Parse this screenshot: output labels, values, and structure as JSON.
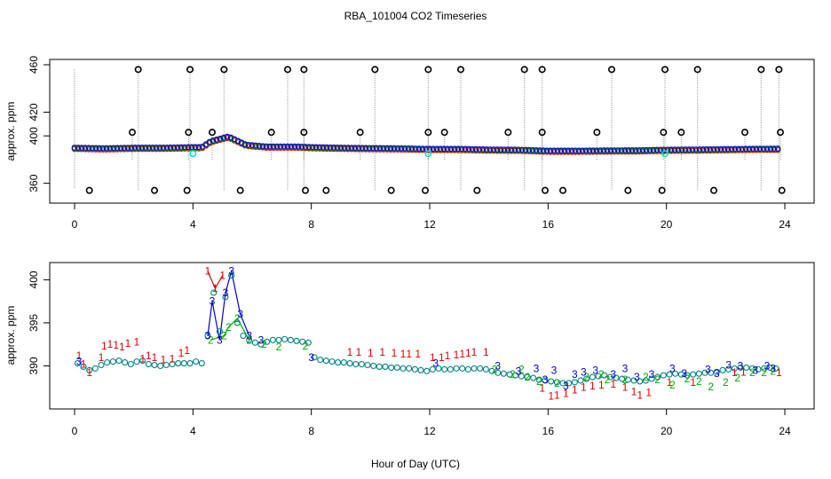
{
  "chart_data": [
    {
      "type": "scatter",
      "title": "RBA_101004  CO2 Timeseries",
      "xlabel": "",
      "ylabel": "approx. ppm",
      "xlim": [
        0,
        24
      ],
      "ylim": [
        350,
        460
      ],
      "xticks": [
        0,
        4,
        8,
        12,
        16,
        20,
        24
      ],
      "yticks": [
        360,
        400,
        420,
        460
      ],
      "colors": {
        "series1": "#dd0000",
        "series2": "#00aa00",
        "series3": "#0000cc",
        "flagged": "#000000",
        "cyan": "#00dddd",
        "lines": "#9a9a9a"
      },
      "baseline": [
        [
          0,
          389.5
        ],
        [
          1,
          389
        ],
        [
          2,
          389.5
        ],
        [
          3,
          389.5
        ],
        [
          4,
          390
        ],
        [
          4.3,
          390
        ],
        [
          4.6,
          395
        ],
        [
          5.2,
          399
        ],
        [
          5.8,
          392
        ],
        [
          6.5,
          390.5
        ],
        [
          7.5,
          390.5
        ],
        [
          8,
          390
        ],
        [
          9,
          389.5
        ],
        [
          10,
          389.2
        ],
        [
          11,
          389
        ],
        [
          12,
          388.5
        ],
        [
          13,
          388.5
        ],
        [
          14,
          388
        ],
        [
          15,
          387.8
        ],
        [
          16,
          387
        ],
        [
          17,
          387
        ],
        [
          18,
          387.2
        ],
        [
          19,
          387.3
        ],
        [
          20,
          387.8
        ],
        [
          21,
          388
        ],
        [
          22,
          388.3
        ],
        [
          23,
          388.6
        ],
        [
          23.8,
          388.7
        ]
      ],
      "flagged_high": [
        2.15,
        3.9,
        5.05,
        7.2,
        7.75,
        10.15,
        11.95,
        13.05,
        15.2,
        15.8,
        18.15,
        19.95,
        21.05,
        23.2,
        23.8
      ],
      "flagged_mid": [
        1.95,
        3.85,
        4.65,
        6.65,
        7.75,
        9.65,
        11.95,
        12.5,
        14.65,
        15.8,
        17.65,
        19.9,
        20.5,
        22.65,
        23.85
      ],
      "flagged_low": [
        0.5,
        2.7,
        3.8,
        5.6,
        7.8,
        8.5,
        10.7,
        11.85,
        13.6,
        15.9,
        16.5,
        18.7,
        19.85,
        21.6,
        23.9
      ],
      "cyan_points": [
        4,
        11.95,
        19.95
      ]
    },
    {
      "type": "scatter",
      "title": "",
      "xlabel": "Hour of Day (UTC)",
      "ylabel": "approx. ppm",
      "xlim": [
        0,
        24
      ],
      "ylim": [
        385,
        402
      ],
      "xticks": [
        0,
        4,
        8,
        12,
        16,
        20,
        24
      ],
      "yticks": [
        390,
        395,
        400
      ],
      "colors": {
        "series1": "#dd0000",
        "series2": "#00aa00",
        "series3": "#0000cc",
        "circles": "#008080"
      },
      "series": [
        {
          "label_char": "1",
          "values": [
            [
              0.15,
              391.2
            ],
            [
              0.3,
              390.2
            ],
            [
              0.5,
              389.2
            ],
            [
              0.9,
              391
            ],
            [
              1,
              392.3
            ],
            [
              1.2,
              392.5
            ],
            [
              1.4,
              392.4
            ],
            [
              1.6,
              392.2
            ],
            [
              1.8,
              392.6
            ],
            [
              2.1,
              392.8
            ],
            [
              2.3,
              390.8
            ],
            [
              2.5,
              391.2
            ],
            [
              2.7,
              391
            ],
            [
              3,
              390.7
            ],
            [
              3.3,
              390.8
            ],
            [
              3.6,
              391.5
            ],
            [
              3.8,
              391.8
            ],
            [
              4.5,
              401
            ],
            [
              4.75,
              399
            ],
            [
              5,
              400.5
            ],
            [
              9.3,
              391.6
            ],
            [
              9.6,
              391.6
            ],
            [
              10,
              391.5
            ],
            [
              10.4,
              391.6
            ],
            [
              10.8,
              391.5
            ],
            [
              11.1,
              391.4
            ],
            [
              11.3,
              391.4
            ],
            [
              11.6,
              391.4
            ],
            [
              12.1,
              391
            ],
            [
              12.4,
              391
            ],
            [
              12.6,
              391.2
            ],
            [
              12.9,
              391.3
            ],
            [
              13.1,
              391.4
            ],
            [
              13.3,
              391.5
            ],
            [
              13.5,
              391.6
            ],
            [
              13.9,
              391.6
            ],
            [
              15.8,
              387.4
            ],
            [
              16.1,
              386.5
            ],
            [
              16.3,
              386.6
            ],
            [
              16.6,
              386.8
            ],
            [
              16.9,
              387.2
            ],
            [
              17.2,
              387.5
            ],
            [
              17.5,
              387.7
            ],
            [
              17.8,
              387.8
            ],
            [
              18.2,
              387.9
            ],
            [
              18.6,
              387.5
            ],
            [
              18.9,
              387
            ],
            [
              19.1,
              386.6
            ],
            [
              19.4,
              386.9
            ],
            [
              20.1,
              388.1
            ],
            [
              20.9,
              388.1
            ],
            [
              22.3,
              389.2
            ],
            [
              22.6,
              389.3
            ],
            [
              23.8,
              389.2
            ]
          ]
        },
        {
          "label_char": "2",
          "values": [
            [
              4.6,
              393
            ],
            [
              5.05,
              393.5
            ],
            [
              5.2,
              394.5
            ],
            [
              5.5,
              395.5
            ],
            [
              5.9,
              393
            ],
            [
              6.4,
              392.5
            ],
            [
              6.9,
              392.2
            ],
            [
              7.8,
              392.3
            ],
            [
              14.2,
              389.6
            ],
            [
              14.8,
              389
            ],
            [
              15.1,
              389.6
            ],
            [
              15.3,
              388.7
            ],
            [
              15.7,
              388.2
            ],
            [
              16.3,
              388
            ],
            [
              17.3,
              388.7
            ],
            [
              17.8,
              389
            ],
            [
              18,
              388.4
            ],
            [
              18.6,
              388.4
            ],
            [
              19.3,
              388.7
            ],
            [
              19.7,
              388.4
            ],
            [
              20.2,
              387.8
            ],
            [
              20.7,
              388.5
            ],
            [
              21.1,
              388.2
            ],
            [
              21.5,
              387.6
            ],
            [
              22,
              388.1
            ],
            [
              22.4,
              388.6
            ],
            [
              22.9,
              389.2
            ],
            [
              23.3,
              389.2
            ],
            [
              23.6,
              389.4
            ]
          ]
        },
        {
          "label_char": "3",
          "values": [
            [
              0.15,
              390.5
            ],
            [
              4.5,
              393.5
            ],
            [
              4.65,
              397.5
            ],
            [
              4.9,
              393
            ],
            [
              5.1,
              398.5
            ],
            [
              5.3,
              401
            ],
            [
              5.6,
              396
            ],
            [
              5.9,
              393.5
            ],
            [
              6.3,
              393
            ],
            [
              8,
              391
            ],
            [
              12.2,
              390.3
            ],
            [
              14.3,
              390
            ],
            [
              15,
              389.4
            ],
            [
              15.6,
              389.7
            ],
            [
              15.9,
              388.4
            ],
            [
              16.2,
              389.5
            ],
            [
              16.6,
              387.7
            ],
            [
              16.9,
              389
            ],
            [
              17.2,
              389.3
            ],
            [
              17.6,
              389.5
            ],
            [
              18.2,
              389
            ],
            [
              18.6,
              389.7
            ],
            [
              19,
              388.7
            ],
            [
              19.5,
              389
            ],
            [
              20.2,
              389.7
            ],
            [
              20.6,
              389.1
            ],
            [
              21.4,
              389.6
            ],
            [
              21.7,
              389.1
            ],
            [
              22.1,
              390.1
            ],
            [
              22.5,
              390
            ],
            [
              23,
              389.5
            ],
            [
              23.4,
              390
            ],
            [
              23.6,
              389.7
            ]
          ]
        }
      ],
      "circles": [
        [
          0.1,
          390.3
        ],
        [
          0.3,
          389.9
        ],
        [
          0.5,
          389.5
        ],
        [
          0.7,
          389.7
        ],
        [
          0.9,
          390.1
        ],
        [
          1.1,
          390.4
        ],
        [
          1.3,
          390.5
        ],
        [
          1.5,
          390.6
        ],
        [
          1.7,
          390.4
        ],
        [
          1.9,
          390.2
        ],
        [
          2.1,
          390.5
        ],
        [
          2.3,
          390.6
        ],
        [
          2.5,
          390.2
        ],
        [
          2.7,
          390.1
        ],
        [
          2.9,
          390
        ],
        [
          3.1,
          390.1
        ],
        [
          3.3,
          390.2
        ],
        [
          3.5,
          390.3
        ],
        [
          3.7,
          390.3
        ],
        [
          3.9,
          390.3
        ],
        [
          4.1,
          390.5
        ],
        [
          4.3,
          390.3
        ],
        [
          4.5,
          393.5
        ],
        [
          4.7,
          398.5
        ],
        [
          4.9,
          394
        ],
        [
          5.1,
          398
        ],
        [
          5.3,
          400.5
        ],
        [
          5.5,
          395
        ],
        [
          5.7,
          393.5
        ],
        [
          5.9,
          393
        ],
        [
          6.1,
          392.7
        ],
        [
          6.3,
          392.5
        ],
        [
          6.5,
          392.8
        ],
        [
          6.7,
          393
        ],
        [
          6.9,
          393
        ],
        [
          7.1,
          393.1
        ],
        [
          7.3,
          393
        ],
        [
          7.5,
          392.9
        ],
        [
          7.7,
          392.8
        ],
        [
          7.9,
          392.7
        ],
        [
          8.1,
          391
        ],
        [
          8.3,
          390.7
        ],
        [
          8.5,
          390.6
        ],
        [
          8.7,
          390.5
        ],
        [
          8.9,
          390.4
        ],
        [
          9.1,
          390.4
        ],
        [
          9.3,
          390.3
        ],
        [
          9.5,
          390.2
        ],
        [
          9.7,
          390.2
        ],
        [
          9.9,
          390.1
        ],
        [
          10.1,
          390
        ],
        [
          10.3,
          389.9
        ],
        [
          10.5,
          389.9
        ],
        [
          10.7,
          389.8
        ],
        [
          10.9,
          389.8
        ],
        [
          11.1,
          389.7
        ],
        [
          11.3,
          389.7
        ],
        [
          11.5,
          389.6
        ],
        [
          11.7,
          389.5
        ],
        [
          11.9,
          389.4
        ],
        [
          12.1,
          389.6
        ],
        [
          12.3,
          389.7
        ],
        [
          12.5,
          389.6
        ],
        [
          12.7,
          389.6
        ],
        [
          12.9,
          389.7
        ],
        [
          13.1,
          389.7
        ],
        [
          13.3,
          389.6
        ],
        [
          13.5,
          389.7
        ],
        [
          13.7,
          389.7
        ],
        [
          13.9,
          389.6
        ],
        [
          14.1,
          389.4
        ],
        [
          14.3,
          389.2
        ],
        [
          14.5,
          389.1
        ],
        [
          14.7,
          389
        ],
        [
          14.9,
          388.9
        ],
        [
          15.1,
          388.8
        ],
        [
          15.3,
          388.7
        ],
        [
          15.5,
          388.6
        ],
        [
          15.7,
          388.4
        ],
        [
          15.9,
          388.3
        ],
        [
          16.1,
          388.2
        ],
        [
          16.3,
          388.1
        ],
        [
          16.5,
          388
        ],
        [
          16.7,
          388
        ],
        [
          16.9,
          388.1
        ],
        [
          17.1,
          388.3
        ],
        [
          17.3,
          388.5
        ],
        [
          17.5,
          388.7
        ],
        [
          17.7,
          388.8
        ],
        [
          17.9,
          388.9
        ],
        [
          18.1,
          388.7
        ],
        [
          18.3,
          388.6
        ],
        [
          18.5,
          388.5
        ],
        [
          18.7,
          388.4
        ],
        [
          18.9,
          388.3
        ],
        [
          19.1,
          388.2
        ],
        [
          19.3,
          388.3
        ],
        [
          19.5,
          388.5
        ],
        [
          19.7,
          388.7
        ],
        [
          19.9,
          388.9
        ],
        [
          20.1,
          389
        ],
        [
          20.3,
          389.1
        ],
        [
          20.5,
          389
        ],
        [
          20.7,
          388.9
        ],
        [
          20.9,
          389
        ],
        [
          21.1,
          389.1
        ],
        [
          21.3,
          389.2
        ],
        [
          21.5,
          389.2
        ],
        [
          21.7,
          389.3
        ],
        [
          21.9,
          389.5
        ],
        [
          22.1,
          389.6
        ],
        [
          22.3,
          389.7
        ],
        [
          22.5,
          389.8
        ],
        [
          22.7,
          389.8
        ],
        [
          22.9,
          389.7
        ],
        [
          23.1,
          389.6
        ],
        [
          23.3,
          389.7
        ],
        [
          23.5,
          389.8
        ],
        [
          23.7,
          389.7
        ]
      ]
    }
  ]
}
